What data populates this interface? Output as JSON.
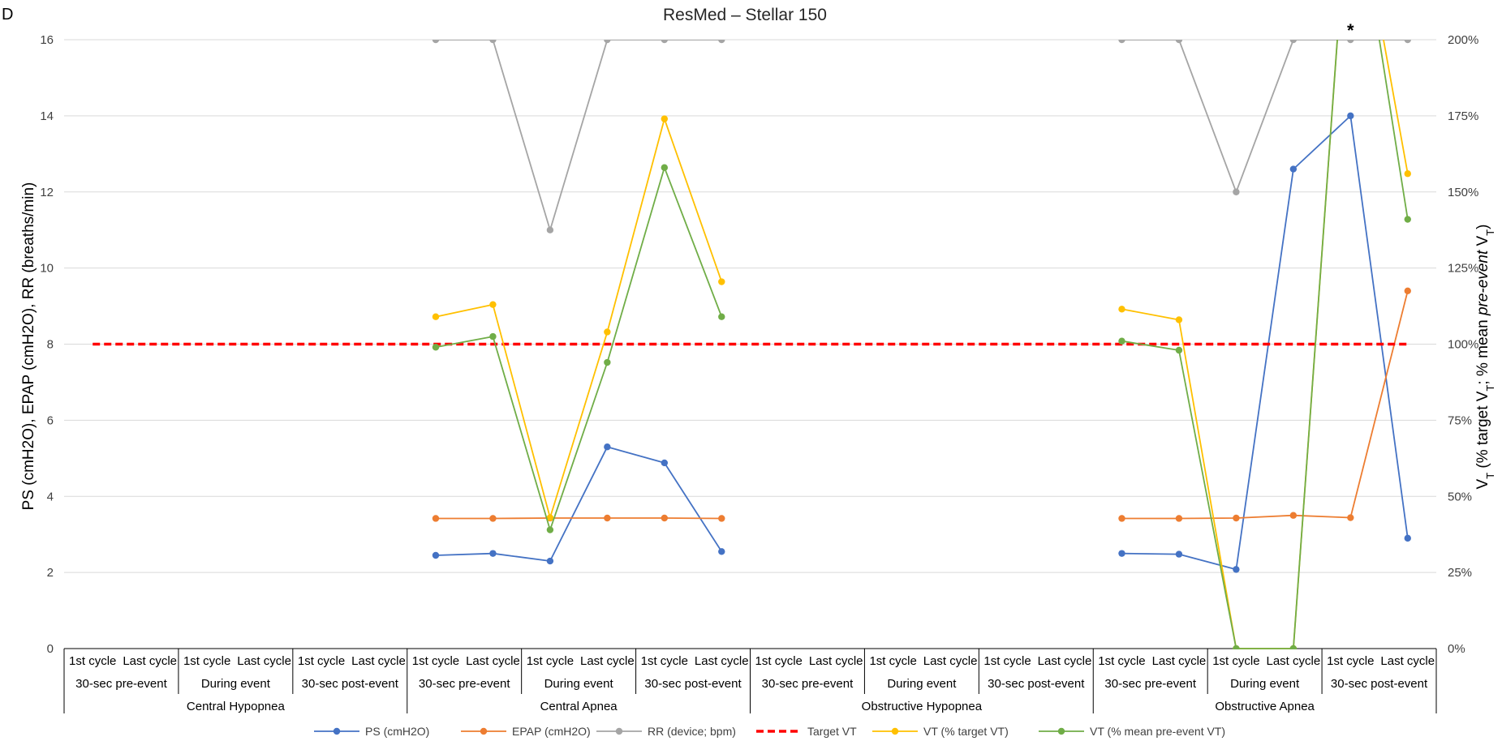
{
  "chart_data": {
    "type": "line",
    "panel_letter": "D",
    "title": "ResMed – Stellar 150",
    "ylabel_left": "PS (cmH2O), EPAP (cmH2O), RR (breaths/min)",
    "ylabel_right_parts": [
      "V",
      "T",
      " (% target V",
      "T",
      "; % mean ",
      "pre-event",
      " V",
      "T",
      ")"
    ],
    "y_left": {
      "min": 0,
      "max": 16,
      "ticks": [
        "0",
        "2",
        "4",
        "6",
        "8",
        "10",
        "12",
        "14",
        "16"
      ]
    },
    "y_right": {
      "min": 0,
      "max": 200,
      "ticks": [
        "0%",
        "25%",
        "50%",
        "75%",
        "100%",
        "125%",
        "150%",
        "175%",
        "200%"
      ]
    },
    "gridlines": true,
    "legend_position": "bottom",
    "categories": [
      "1st cycle",
      "Last cycle",
      "1st cycle",
      "Last cycle",
      "1st cycle",
      "Last cycle",
      "1st cycle",
      "Last cycle",
      "1st cycle",
      "Last cycle",
      "1st cycle",
      "Last cycle",
      "1st cycle",
      "Last cycle",
      "1st cycle",
      "Last cycle",
      "1st cycle",
      "Last cycle",
      "1st cycle",
      "Last cycle",
      "1st cycle",
      "Last cycle",
      "1st cycle",
      "Last cycle"
    ],
    "phases": [
      "30-sec pre-event",
      "During event",
      "30-sec post-event",
      "30-sec pre-event",
      "During event",
      "30-sec post-event",
      "30-sec pre-event",
      "During event",
      "30-sec post-event",
      "30-sec pre-event",
      "During event",
      "30-sec post-event"
    ],
    "groups": [
      "Central Hypopnea",
      "Central Apnea",
      "Obstructive Hypopnea",
      "Obstructive Apnea"
    ],
    "series": [
      {
        "name": "PS (cmH2O)",
        "axis": "left",
        "color": "#4472c4",
        "values": [
          null,
          null,
          null,
          null,
          null,
          null,
          2.45,
          2.5,
          2.3,
          5.3,
          4.88,
          2.55,
          null,
          null,
          null,
          null,
          null,
          null,
          2.5,
          2.48,
          2.08,
          12.6,
          14.0,
          2.9
        ]
      },
      {
        "name": "EPAP (cmH2O)",
        "axis": "left",
        "color": "#ed7d31",
        "values": [
          null,
          null,
          null,
          null,
          null,
          null,
          3.42,
          3.42,
          3.43,
          3.43,
          3.43,
          3.42,
          null,
          null,
          null,
          null,
          null,
          null,
          3.42,
          3.42,
          3.43,
          3.5,
          3.44,
          9.4
        ]
      },
      {
        "name": "RR (device; bpm)",
        "axis": "left",
        "color": "#a5a5a5",
        "values": [
          null,
          null,
          null,
          null,
          null,
          null,
          16,
          16,
          11,
          16,
          16,
          16,
          null,
          null,
          null,
          null,
          null,
          null,
          16,
          16,
          12,
          16,
          16,
          16
        ]
      },
      {
        "name": "Target VT",
        "axis": "left",
        "color": "#ff0000",
        "dashed": true,
        "values": [
          8,
          8,
          8,
          8,
          8,
          8,
          8,
          8,
          8,
          8,
          8,
          8,
          8,
          8,
          8,
          8,
          8,
          8,
          8,
          8,
          8,
          8,
          8,
          8
        ]
      },
      {
        "name": "VT (% target VT)",
        "axis": "right",
        "color": "#ffc000",
        "values": [
          null,
          null,
          null,
          null,
          null,
          null,
          109,
          113,
          43,
          104,
          174,
          120.5,
          null,
          null,
          null,
          null,
          null,
          null,
          111.5,
          108,
          0,
          0,
          260,
          156
        ]
      },
      {
        "name": "VT (% mean pre-event VT)",
        "axis": "right",
        "color": "#70ad47",
        "values": [
          null,
          null,
          null,
          null,
          null,
          null,
          99,
          102.5,
          39,
          94,
          158,
          109,
          null,
          null,
          null,
          null,
          null,
          null,
          101,
          98,
          0,
          0,
          260,
          141
        ]
      }
    ],
    "annotations": [
      {
        "text": "*",
        "category_index": 22
      }
    ]
  }
}
